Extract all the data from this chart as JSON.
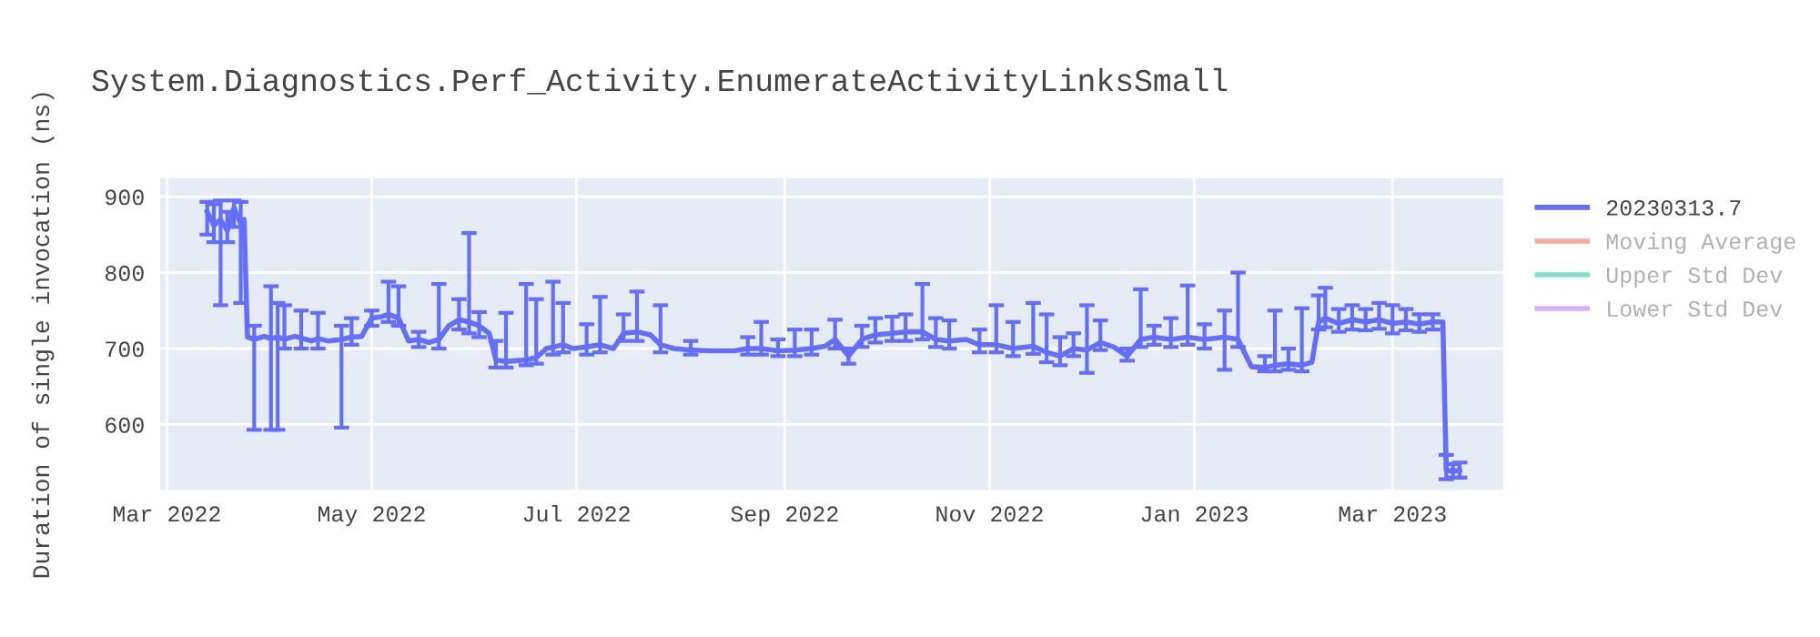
{
  "chart_data": {
    "type": "line",
    "title": "System.Diagnostics.Perf_Activity.EnumerateActivityLinksSmall",
    "ylabel": "Duration of single invocation (ns)",
    "xlim": [
      "2022-02-27",
      "2023-04-03"
    ],
    "xticks": [
      {
        "value": "2022-03-01",
        "label": "Mar 2022"
      },
      {
        "value": "2022-05-01",
        "label": "May 2022"
      },
      {
        "value": "2022-07-01",
        "label": "Jul 2022"
      },
      {
        "value": "2022-09-01",
        "label": "Sep 2022"
      },
      {
        "value": "2022-11-01",
        "label": "Nov 2022"
      },
      {
        "value": "2023-01-01",
        "label": "Jan 2023"
      },
      {
        "value": "2023-03-01",
        "label": "Mar 2023"
      }
    ],
    "ylim": [
      514,
      924
    ],
    "yticks": [
      600,
      700,
      800,
      900
    ],
    "grid": true,
    "legend": "right",
    "marker": "none",
    "line_style": "solid",
    "series": [
      {
        "name": "20230313.7",
        "color": "#636efa",
        "x": [
          "2022-03-13",
          "2022-03-15",
          "2022-03-17",
          "2022-03-19",
          "2022-03-21",
          "2022-03-23",
          "2022-03-24",
          "2022-03-25",
          "2022-03-27",
          "2022-03-30",
          "2022-04-01",
          "2022-04-03",
          "2022-04-05",
          "2022-04-08",
          "2022-04-10",
          "2022-04-13",
          "2022-04-15",
          "2022-04-18",
          "2022-04-22",
          "2022-04-25",
          "2022-04-28",
          "2022-05-01",
          "2022-05-04",
          "2022-05-06",
          "2022-05-09",
          "2022-05-12",
          "2022-05-15",
          "2022-05-18",
          "2022-05-21",
          "2022-05-24",
          "2022-05-27",
          "2022-05-30",
          "2022-06-02",
          "2022-06-05",
          "2022-06-07",
          "2022-06-10",
          "2022-06-13",
          "2022-06-16",
          "2022-06-19",
          "2022-06-22",
          "2022-06-24",
          "2022-06-27",
          "2022-06-30",
          "2022-07-04",
          "2022-07-08",
          "2022-07-12",
          "2022-07-15",
          "2022-07-19",
          "2022-07-23",
          "2022-07-26",
          "2022-07-30",
          "2022-08-04",
          "2022-08-10",
          "2022-08-17",
          "2022-08-21",
          "2022-08-25",
          "2022-08-30",
          "2022-09-04",
          "2022-09-09",
          "2022-09-13",
          "2022-09-16",
          "2022-09-20",
          "2022-09-24",
          "2022-09-28",
          "2022-10-03",
          "2022-10-07",
          "2022-10-12",
          "2022-10-16",
          "2022-10-20",
          "2022-10-25",
          "2022-10-29",
          "2022-11-03",
          "2022-11-08",
          "2022-11-14",
          "2022-11-18",
          "2022-11-22",
          "2022-11-26",
          "2022-11-30",
          "2022-12-04",
          "2022-12-08",
          "2022-12-12",
          "2022-12-16",
          "2022-12-20",
          "2022-12-25",
          "2022-12-30",
          "2023-01-04",
          "2023-01-10",
          "2023-01-14",
          "2023-01-18",
          "2023-01-22",
          "2023-01-25",
          "2023-01-29",
          "2023-02-02",
          "2023-02-05",
          "2023-02-07",
          "2023-02-09",
          "2023-02-13",
          "2023-02-17",
          "2023-02-21",
          "2023-02-25",
          "2023-03-01",
          "2023-03-05",
          "2023-03-09",
          "2023-03-13",
          "2023-03-16",
          "2023-03-17",
          "2023-03-19",
          "2023-03-21"
        ],
        "values": [
          880,
          862,
          870,
          855,
          885,
          865,
          870,
          715,
          712,
          716,
          713,
          715,
          712,
          716,
          714,
          710,
          713,
          710,
          712,
          715,
          716,
          740,
          742,
          745,
          740,
          710,
          712,
          708,
          712,
          730,
          738,
          735,
          730,
          720,
          685,
          683,
          684,
          685,
          688,
          700,
          702,
          705,
          700,
          702,
          705,
          700,
          720,
          722,
          718,
          705,
          700,
          698,
          697,
          697,
          700,
          700,
          697,
          698,
          700,
          703,
          712,
          690,
          712,
          718,
          720,
          722,
          722,
          712,
          710,
          712,
          705,
          705,
          700,
          703,
          695,
          690,
          700,
          698,
          708,
          702,
          690,
          712,
          715,
          712,
          715,
          712,
          715,
          712,
          676,
          675,
          678,
          680,
          678,
          682,
          735,
          740,
          733,
          738,
          735,
          738,
          733,
          735,
          732,
          735,
          735,
          540,
          538,
          540
        ],
        "errors": [
          [
            850,
            893
          ],
          [
            840,
            890
          ],
          [
            757,
            895
          ],
          [
            840,
            880
          ],
          [
            860,
            895
          ],
          [
            760,
            893
          ],
          null,
          null,
          [
            593,
            730
          ],
          null,
          [
            593,
            782
          ],
          [
            593,
            760
          ],
          [
            700,
            757
          ],
          null,
          [
            700,
            750
          ],
          null,
          [
            700,
            747
          ],
          null,
          [
            596,
            730
          ],
          [
            705,
            740
          ],
          null,
          [
            730,
            750
          ],
          null,
          [
            735,
            788
          ],
          [
            730,
            782
          ],
          null,
          [
            702,
            722
          ],
          null,
          [
            700,
            785
          ],
          null,
          [
            725,
            765
          ],
          [
            720,
            852
          ],
          [
            715,
            748
          ],
          null,
          [
            675,
            710
          ],
          [
            675,
            747
          ],
          null,
          [
            678,
            785
          ],
          [
            680,
            765
          ],
          null,
          [
            692,
            788
          ],
          [
            695,
            760
          ],
          null,
          [
            692,
            732
          ],
          [
            695,
            768
          ],
          null,
          [
            710,
            745
          ],
          [
            710,
            775
          ],
          null,
          [
            695,
            757
          ],
          null,
          [
            692,
            710
          ],
          null,
          null,
          [
            692,
            715
          ],
          [
            692,
            735
          ],
          [
            690,
            712
          ],
          [
            690,
            725
          ],
          [
            692,
            725
          ],
          null,
          [
            700,
            738
          ],
          [
            680,
            700
          ],
          [
            702,
            730
          ],
          [
            708,
            740
          ],
          [
            710,
            742
          ],
          [
            710,
            745
          ],
          [
            712,
            785
          ],
          [
            702,
            740
          ],
          [
            700,
            737
          ],
          null,
          [
            695,
            725
          ],
          [
            695,
            757
          ],
          [
            690,
            735
          ],
          [
            693,
            760
          ],
          [
            682,
            745
          ],
          [
            678,
            715
          ],
          [
            690,
            720
          ],
          [
            668,
            757
          ],
          [
            698,
            737
          ],
          null,
          [
            684,
            700
          ],
          [
            702,
            778
          ],
          [
            705,
            730
          ],
          [
            702,
            740
          ],
          [
            705,
            783
          ],
          [
            700,
            732
          ],
          [
            672,
            750
          ],
          [
            702,
            800
          ],
          null,
          [
            670,
            690
          ],
          [
            670,
            750
          ],
          [
            672,
            700
          ],
          [
            670,
            753
          ],
          null,
          [
            725,
            770
          ],
          [
            728,
            780
          ],
          [
            722,
            752
          ],
          [
            725,
            757
          ],
          [
            724,
            752
          ],
          [
            726,
            760
          ],
          [
            720,
            757
          ],
          [
            724,
            752
          ],
          [
            722,
            745
          ],
          [
            725,
            745
          ],
          null,
          [
            528,
            560
          ],
          [
            530,
            548
          ],
          [
            530,
            550
          ]
        ]
      },
      {
        "name": "Moving Average",
        "color": "#f7aa9d"
      },
      {
        "name": "Upper Std Dev",
        "color": "#7fe5ca"
      },
      {
        "name": "Lower Std Dev",
        "color": "#d5b1fc"
      }
    ]
  }
}
